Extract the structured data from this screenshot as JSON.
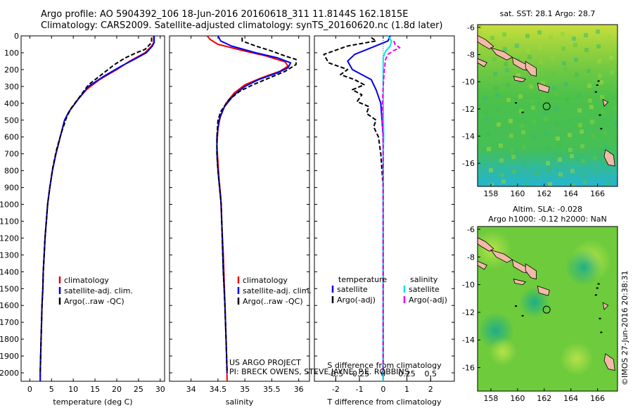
{
  "header": {
    "title_line1": "Argo profile: AO 5904392_106 18-Jun-2016 20160618_311 11.8144S 162.1815E",
    "title_line2": "Climatology: CARS2009. Satellite-adjusted climatology: synTS_20160620.nc (1.8d later)"
  },
  "credits": {
    "project": "US ARGO PROJECT",
    "pi": "PI: BRECK OWENS, STEVE JAYNE, P.E. ROBBINS",
    "stamp": "©IMOS 27-Jun-2016 20:38:31"
  },
  "colors": {
    "climatology": "#ee0000",
    "satellite": "#0000ee",
    "argo": "#000000",
    "sal_satellite": "#00e5ee",
    "sal_argo": "#ee00ee",
    "land": "#f3b9a8"
  },
  "chart_data": [
    {
      "type": "line",
      "id": "temperature",
      "xlabel": "temperature (deg C)",
      "xlim": [
        -2,
        31
      ],
      "ylim": [
        0,
        2050
      ],
      "y_reversed": true,
      "x_ticks": [
        "0",
        "5",
        "10",
        "15",
        "20",
        "25",
        "30"
      ],
      "y_ticks": [
        "0",
        "100",
        "200",
        "300",
        "400",
        "500",
        "600",
        "700",
        "800",
        "900",
        "1000",
        "1100",
        "1200",
        "1300",
        "1400",
        "1500",
        "1600",
        "1700",
        "1800",
        "1900",
        "2000"
      ],
      "legend": [
        "climatology",
        "satellite-adj. clim.",
        "Argo(..raw -QC)"
      ],
      "series": [
        {
          "name": "climatology",
          "style": "solid",
          "color": "#ee0000",
          "points": [
            [
              28.5,
              0
            ],
            [
              28.5,
              40
            ],
            [
              28,
              60
            ],
            [
              26.5,
              100
            ],
            [
              23,
              150
            ],
            [
              20,
              200
            ],
            [
              16,
              260
            ],
            [
              13,
              320
            ],
            [
              11,
              380
            ],
            [
              9,
              450
            ],
            [
              8,
              500
            ],
            [
              7,
              600
            ],
            [
              6,
              700
            ],
            [
              5.2,
              800
            ],
            [
              4.6,
              900
            ],
            [
              4.1,
              1000
            ],
            [
              3.8,
              1100
            ],
            [
              3.5,
              1200
            ],
            [
              3.3,
              1300
            ],
            [
              3.1,
              1400
            ],
            [
              3,
              1500
            ],
            [
              2.8,
              1600
            ],
            [
              2.7,
              1700
            ],
            [
              2.6,
              1800
            ],
            [
              2.5,
              1900
            ],
            [
              2.4,
              2000
            ],
            [
              2.4,
              2050
            ]
          ]
        },
        {
          "name": "satellite-adj. clim.",
          "style": "solid",
          "color": "#0000ee",
          "points": [
            [
              28.6,
              0
            ],
            [
              28.6,
              40
            ],
            [
              28.2,
              60
            ],
            [
              26.8,
              100
            ],
            [
              24,
              140
            ],
            [
              21,
              180
            ],
            [
              17,
              240
            ],
            [
              13.5,
              300
            ],
            [
              11,
              380
            ],
            [
              9,
              450
            ],
            [
              8,
              500
            ],
            [
              7,
              600
            ],
            [
              6,
              700
            ],
            [
              5.2,
              800
            ],
            [
              4.6,
              900
            ],
            [
              4.1,
              1000
            ],
            [
              3.8,
              1100
            ],
            [
              3.5,
              1200
            ],
            [
              3.3,
              1300
            ],
            [
              3.1,
              1400
            ],
            [
              3,
              1500
            ],
            [
              2.8,
              1600
            ],
            [
              2.7,
              1700
            ],
            [
              2.6,
              1800
            ],
            [
              2.5,
              1900
            ],
            [
              2.4,
              2000
            ],
            [
              2.4,
              2050
            ]
          ]
        },
        {
          "name": "Argo(..raw -QC)",
          "style": "dash",
          "color": "#000000",
          "points": [
            [
              28,
              10
            ],
            [
              28,
              40
            ],
            [
              26.5,
              80
            ],
            [
              24.5,
              100
            ],
            [
              22,
              130
            ],
            [
              19.5,
              170
            ],
            [
              16.5,
              230
            ],
            [
              13.5,
              290
            ],
            [
              11.5,
              360
            ],
            [
              9.5,
              430
            ],
            [
              8.5,
              480
            ],
            [
              7.2,
              580
            ],
            [
              6.1,
              680
            ],
            [
              5.3,
              780
            ],
            [
              4.6,
              900
            ],
            [
              4.1,
              1000
            ],
            [
              3.8,
              1100
            ],
            [
              3.5,
              1200
            ],
            [
              3.3,
              1300
            ],
            [
              3.1,
              1400
            ],
            [
              3,
              1500
            ],
            [
              2.8,
              1600
            ],
            [
              2.7,
              1700
            ],
            [
              2.6,
              1800
            ],
            [
              2.5,
              1900
            ],
            [
              2.4,
              2000
            ]
          ]
        }
      ]
    },
    {
      "type": "line",
      "id": "salinity",
      "xlabel": "salinity",
      "xlim": [
        33.6,
        36.2
      ],
      "ylim": [
        0,
        2050
      ],
      "y_reversed": true,
      "x_ticks": [
        "34",
        "34.5",
        "35",
        "35.5",
        "36"
      ],
      "legend": [
        "climatology",
        "satellite-adj. clim.",
        "Argo(..raw -QC)"
      ],
      "series": [
        {
          "name": "climatology",
          "style": "solid",
          "color": "#ee0000",
          "points": [
            [
              34.3,
              0
            ],
            [
              34.35,
              20
            ],
            [
              34.5,
              50
            ],
            [
              35,
              90
            ],
            [
              35.4,
              120
            ],
            [
              35.75,
              155
            ],
            [
              35.8,
              180
            ],
            [
              35.65,
              210
            ],
            [
              35.3,
              250
            ],
            [
              35,
              290
            ],
            [
              34.8,
              340
            ],
            [
              34.65,
              400
            ],
            [
              34.55,
              470
            ],
            [
              34.5,
              550
            ],
            [
              34.48,
              650
            ],
            [
              34.5,
              750
            ],
            [
              34.52,
              850
            ],
            [
              34.55,
              950
            ],
            [
              34.57,
              1100
            ],
            [
              34.6,
              1300
            ],
            [
              34.62,
              1500
            ],
            [
              34.64,
              1700
            ],
            [
              34.66,
              1900
            ],
            [
              34.67,
              2050
            ]
          ]
        },
        {
          "name": "satellite-adj. clim.",
          "style": "solid",
          "color": "#0000ee",
          "points": [
            [
              34.5,
              0
            ],
            [
              34.55,
              30
            ],
            [
              34.75,
              60
            ],
            [
              35.2,
              100
            ],
            [
              35.6,
              130
            ],
            [
              35.85,
              160
            ],
            [
              35.8,
              190
            ],
            [
              35.6,
              220
            ],
            [
              35.25,
              260
            ],
            [
              35,
              300
            ],
            [
              34.8,
              350
            ],
            [
              34.62,
              420
            ],
            [
              34.52,
              500
            ],
            [
              34.48,
              600
            ],
            [
              34.48,
              700
            ],
            [
              34.5,
              800
            ],
            [
              34.53,
              900
            ],
            [
              34.56,
              1000
            ],
            [
              34.58,
              1200
            ],
            [
              34.6,
              1400
            ],
            [
              34.63,
              1600
            ],
            [
              34.65,
              1800
            ],
            [
              34.67,
              2000
            ]
          ]
        },
        {
          "name": "Argo(..raw -QC)",
          "style": "dash",
          "color": "#000000",
          "points": [
            [
              34.95,
              10
            ],
            [
              34.95,
              30
            ],
            [
              35.2,
              60
            ],
            [
              35.5,
              90
            ],
            [
              35.75,
              120
            ],
            [
              35.95,
              140
            ],
            [
              35.95,
              170
            ],
            [
              35.75,
              210
            ],
            [
              35.45,
              250
            ],
            [
              35.15,
              290
            ],
            [
              34.9,
              330
            ],
            [
              34.7,
              380
            ],
            [
              34.55,
              450
            ],
            [
              34.5,
              500
            ],
            [
              34.48,
              600
            ],
            [
              34.48,
              700
            ],
            [
              34.5,
              800
            ],
            [
              34.53,
              900
            ],
            [
              34.56,
              1000
            ],
            [
              34.58,
              1200
            ],
            [
              34.6,
              1400
            ],
            [
              34.63,
              1600
            ],
            [
              34.65,
              1800
            ],
            [
              34.67,
              2000
            ]
          ]
        }
      ]
    },
    {
      "type": "line",
      "id": "differences",
      "xlabel": "T difference from climatology",
      "x2label": "S difference from climatology",
      "xlim": [
        -2.9,
        3
      ],
      "x2lim": [
        -0.725,
        0.75
      ],
      "ylim": [
        0,
        2050
      ],
      "y_reversed": true,
      "x_ticks": [
        "-2",
        "-1",
        "0",
        "1",
        "2"
      ],
      "x2_ticks": [
        "-0.5",
        "-0.25",
        "0",
        "0.25",
        "0.5"
      ],
      "legend_titles": [
        "temperature",
        "salinity"
      ],
      "legend": [
        "satellite",
        "Argo(-adj)",
        "satellite",
        "Argo(-adj)"
      ],
      "series": [
        {
          "name": "temperature satellite",
          "style": "solid",
          "color": "#0000ee",
          "points": [
            [
              0.3,
              0
            ],
            [
              0.2,
              30
            ],
            [
              -0.5,
              70
            ],
            [
              -1.2,
              110
            ],
            [
              -1.5,
              150
            ],
            [
              -1.3,
              200
            ],
            [
              -0.5,
              260
            ],
            [
              -0.3,
              320
            ],
            [
              -0.1,
              400
            ],
            [
              -0.05,
              500
            ],
            [
              0,
              600
            ],
            [
              0,
              2050
            ]
          ]
        },
        {
          "name": "temperature Argo(-adj)",
          "style": "dash",
          "color": "#000000",
          "points": [
            [
              -0.5,
              10
            ],
            [
              -0.3,
              30
            ],
            [
              -1.5,
              60
            ],
            [
              -2.5,
              110
            ],
            [
              -2.3,
              160
            ],
            [
              -1.5,
              200
            ],
            [
              -1.8,
              230
            ],
            [
              -1.2,
              260
            ],
            [
              -0.8,
              290
            ],
            [
              -1.3,
              320
            ],
            [
              -0.9,
              350
            ],
            [
              -1.1,
              390
            ],
            [
              -0.6,
              420
            ],
            [
              -0.7,
              460
            ],
            [
              -0.3,
              500
            ],
            [
              -0.4,
              540
            ],
            [
              -0.2,
              600
            ],
            [
              -0.1,
              700
            ],
            [
              -0.05,
              800
            ],
            [
              0,
              900
            ],
            [
              0,
              2000
            ]
          ]
        },
        {
          "name": "salinity satellite",
          "style": "solid",
          "color": "#00e5ee",
          "points": [
            [
              0.2,
              0
            ],
            [
              0.35,
              30
            ],
            [
              0.3,
              60
            ],
            [
              0.1,
              90
            ],
            [
              0,
              130
            ],
            [
              0,
              400
            ],
            [
              0.02,
              600
            ],
            [
              0,
              700
            ],
            [
              0,
              2050
            ]
          ]
        },
        {
          "name": "salinity Argo(-adj)",
          "style": "dash",
          "color": "#ee00ee",
          "points": [
            [
              0.45,
              30
            ],
            [
              0.5,
              50
            ],
            [
              0.7,
              70
            ],
            [
              0.4,
              90
            ],
            [
              0.2,
              110
            ],
            [
              0.1,
              140
            ],
            [
              0.05,
              200
            ],
            [
              0,
              300
            ],
            [
              -0.03,
              400
            ],
            [
              -0.04,
              500
            ],
            [
              0,
              600
            ],
            [
              0,
              700
            ],
            [
              0,
              2000
            ]
          ]
        }
      ]
    },
    {
      "type": "heatmap",
      "id": "sst_map",
      "title": "sat. SST: 28.1  Argo: 28.7",
      "xlim": [
        157,
        167.5
      ],
      "ylim": [
        -17.7,
        -5.8
      ],
      "x_ticks": [
        "158",
        "160",
        "162",
        "164",
        "166"
      ],
      "y_ticks": [
        "-6",
        "-8",
        "-10",
        "-12",
        "-14",
        "-16"
      ],
      "argo_position": [
        162.18,
        -11.81
      ]
    },
    {
      "type": "heatmap",
      "id": "sla_map",
      "title": "Altim. SLA: -0.028",
      "subtitle": "Argo h1000: -0.12 h2000: NaN",
      "xlim": [
        157,
        167.5
      ],
      "ylim": [
        -17.7,
        -5.8
      ],
      "x_ticks": [
        "158",
        "160",
        "162",
        "164",
        "166"
      ],
      "y_ticks": [
        "-6",
        "-8",
        "-10",
        "-12",
        "-14",
        "-16"
      ],
      "argo_position": [
        162.18,
        -11.81
      ]
    }
  ]
}
